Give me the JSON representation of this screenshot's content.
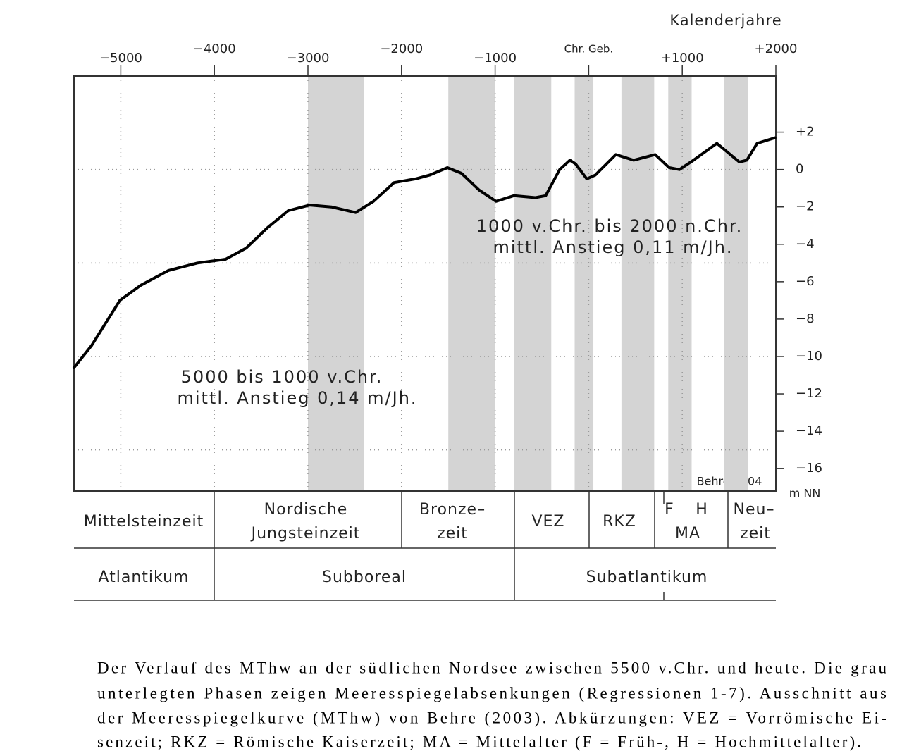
{
  "chart_data": {
    "type": "line",
    "xlabel": "Kalenderjahre",
    "ylabel": "m NN",
    "credit": "Behre 2004",
    "annotations": [
      "1000 v.Chr. bis 2000 n.Chr.",
      "mittl. Anstieg 0,11 m/Jh.",
      "5000 bis 1000 v.Chr.",
      "mittl. Anstieg 0,14 m/Jh."
    ],
    "xlim": [
      -5500,
      2000
    ],
    "ylim": [
      -17.2,
      5
    ],
    "xticks": [
      {
        "value": -5000,
        "label": "−5000"
      },
      {
        "value": -4000,
        "label": "−4000"
      },
      {
        "value": -3000,
        "label": "−3000"
      },
      {
        "value": -2000,
        "label": "−2000"
      },
      {
        "value": -1000,
        "label": "−1000"
      },
      {
        "value": 0,
        "label": "Chr. Geb."
      },
      {
        "value": 1000,
        "label": "+1000"
      },
      {
        "value": 2000,
        "label": "+2000"
      }
    ],
    "yticks": [
      {
        "value": 2,
        "label": "+2"
      },
      0,
      {
        "value": -2,
        "label": "−2"
      },
      {
        "value": -4,
        "label": "−4"
      },
      {
        "value": -6,
        "label": "−6"
      },
      {
        "value": -8,
        "label": "−8"
      },
      {
        "value": -10,
        "label": "−10"
      },
      {
        "value": -12,
        "label": "−12"
      },
      {
        "value": -14,
        "label": "−14"
      },
      {
        "value": -16,
        "label": "−16"
      }
    ],
    "ygrid": [
      0,
      -5,
      -10,
      -15
    ],
    "grid": true,
    "bands": [
      [
        -3000,
        -2400
      ],
      [
        -1500,
        -1000
      ],
      [
        -800,
        -400
      ],
      [
        -150,
        50
      ],
      [
        350,
        700
      ],
      [
        850,
        1100
      ],
      [
        1450,
        1700
      ]
    ],
    "band_color": "#d4d4d4",
    "x": [
      -5500,
      -5310,
      -5010,
      -4790,
      -4490,
      -4180,
      -3880,
      -3660,
      -3430,
      -3210,
      -2980,
      -2750,
      -2490,
      -2300,
      -2080,
      -1850,
      -1700,
      -1510,
      -1360,
      -1170,
      -990,
      -800,
      -570,
      -460,
      -310,
      -200,
      -140,
      -20,
      70,
      290,
      480,
      710,
      860,
      970,
      1120,
      1370,
      1610,
      1690,
      1800,
      1990
    ],
    "series": [
      {
        "name": "MThw",
        "color": "#000000",
        "values": [
          -10.6,
          -9.4,
          -7.0,
          -6.2,
          -5.4,
          -5.0,
          -4.8,
          -4.2,
          -3.1,
          -2.2,
          -1.9,
          -2.0,
          -2.3,
          -1.7,
          -0.7,
          -0.5,
          -0.3,
          0.1,
          -0.2,
          -1.1,
          -1.7,
          -1.4,
          -1.5,
          -1.4,
          0.0,
          0.5,
          0.3,
          -0.5,
          -0.3,
          0.8,
          0.5,
          0.8,
          0.1,
          0.0,
          0.5,
          1.4,
          0.4,
          0.5,
          1.4,
          1.7
        ]
      }
    ]
  },
  "periods": {
    "cultures": [
      "Mittelsteinzeit",
      "Nordische",
      "Jungsteinzeit",
      "Bronze–",
      "zeit",
      "VEZ",
      "RKZ",
      "F",
      "H",
      "MA",
      "Neu–",
      "zeit"
    ],
    "climate": [
      "Atlantikum",
      "Subboreal",
      "Subatlantikum"
    ]
  },
  "caption": [
    "Der Verlauf des MThw an der südlichen Nordsee zwischen 5500 v.Chr. und heute. Die grau",
    "unterlegten Phasen zeigen Meeresspiegelabsenkungen (Regressionen 1-7). Ausschnitt aus",
    "der Meeresspiegelkurve (MThw) von Behre (2003). Abkürzungen: VEZ = Vorrömische Ei-",
    "senzeit; RKZ = Römische Kaiserzeit; MA = Mittelalter (F = Früh-, H = Hochmittelalter)."
  ]
}
